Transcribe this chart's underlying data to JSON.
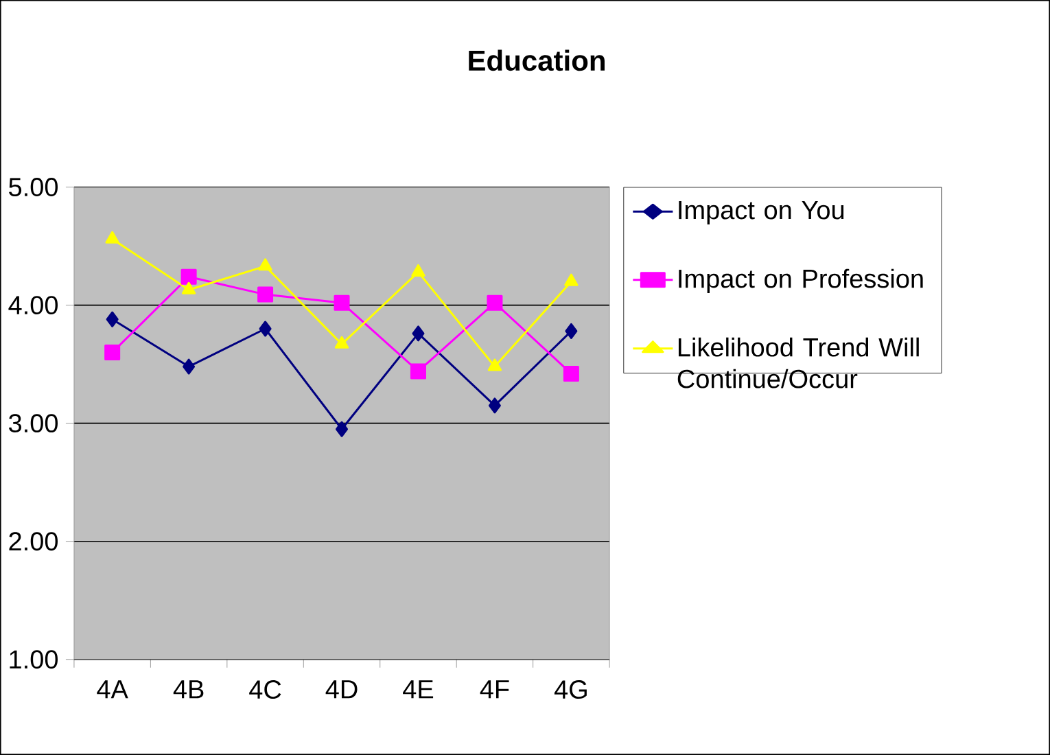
{
  "chart_data": {
    "type": "line",
    "title": "Education",
    "categories": [
      "4A",
      "4B",
      "4C",
      "4D",
      "4E",
      "4F",
      "4G"
    ],
    "series": [
      {
        "name": "Impact on You",
        "color": "#000080",
        "marker": "diamond",
        "values": [
          3.88,
          3.48,
          3.8,
          2.95,
          3.76,
          3.15,
          3.78
        ]
      },
      {
        "name": "Impact on Profession",
        "color": "#ff00ff",
        "marker": "square",
        "values": [
          3.6,
          4.24,
          4.09,
          4.02,
          3.44,
          4.02,
          3.42
        ]
      },
      {
        "name": "Likelihood Trend Will Continue/Occur",
        "color": "#ffff00",
        "marker": "triangle",
        "values": [
          4.56,
          4.13,
          4.33,
          3.67,
          4.28,
          3.48,
          4.2
        ]
      }
    ],
    "ylim": [
      1,
      5
    ],
    "yticks": [
      {
        "value": 1,
        "label": "1.00"
      },
      {
        "value": 2,
        "label": "2.00"
      },
      {
        "value": 3,
        "label": "3.00"
      },
      {
        "value": 4,
        "label": "4.00"
      },
      {
        "value": 5,
        "label": "5.00"
      }
    ],
    "grid": "y",
    "legend": "right",
    "line_style": "solid"
  }
}
